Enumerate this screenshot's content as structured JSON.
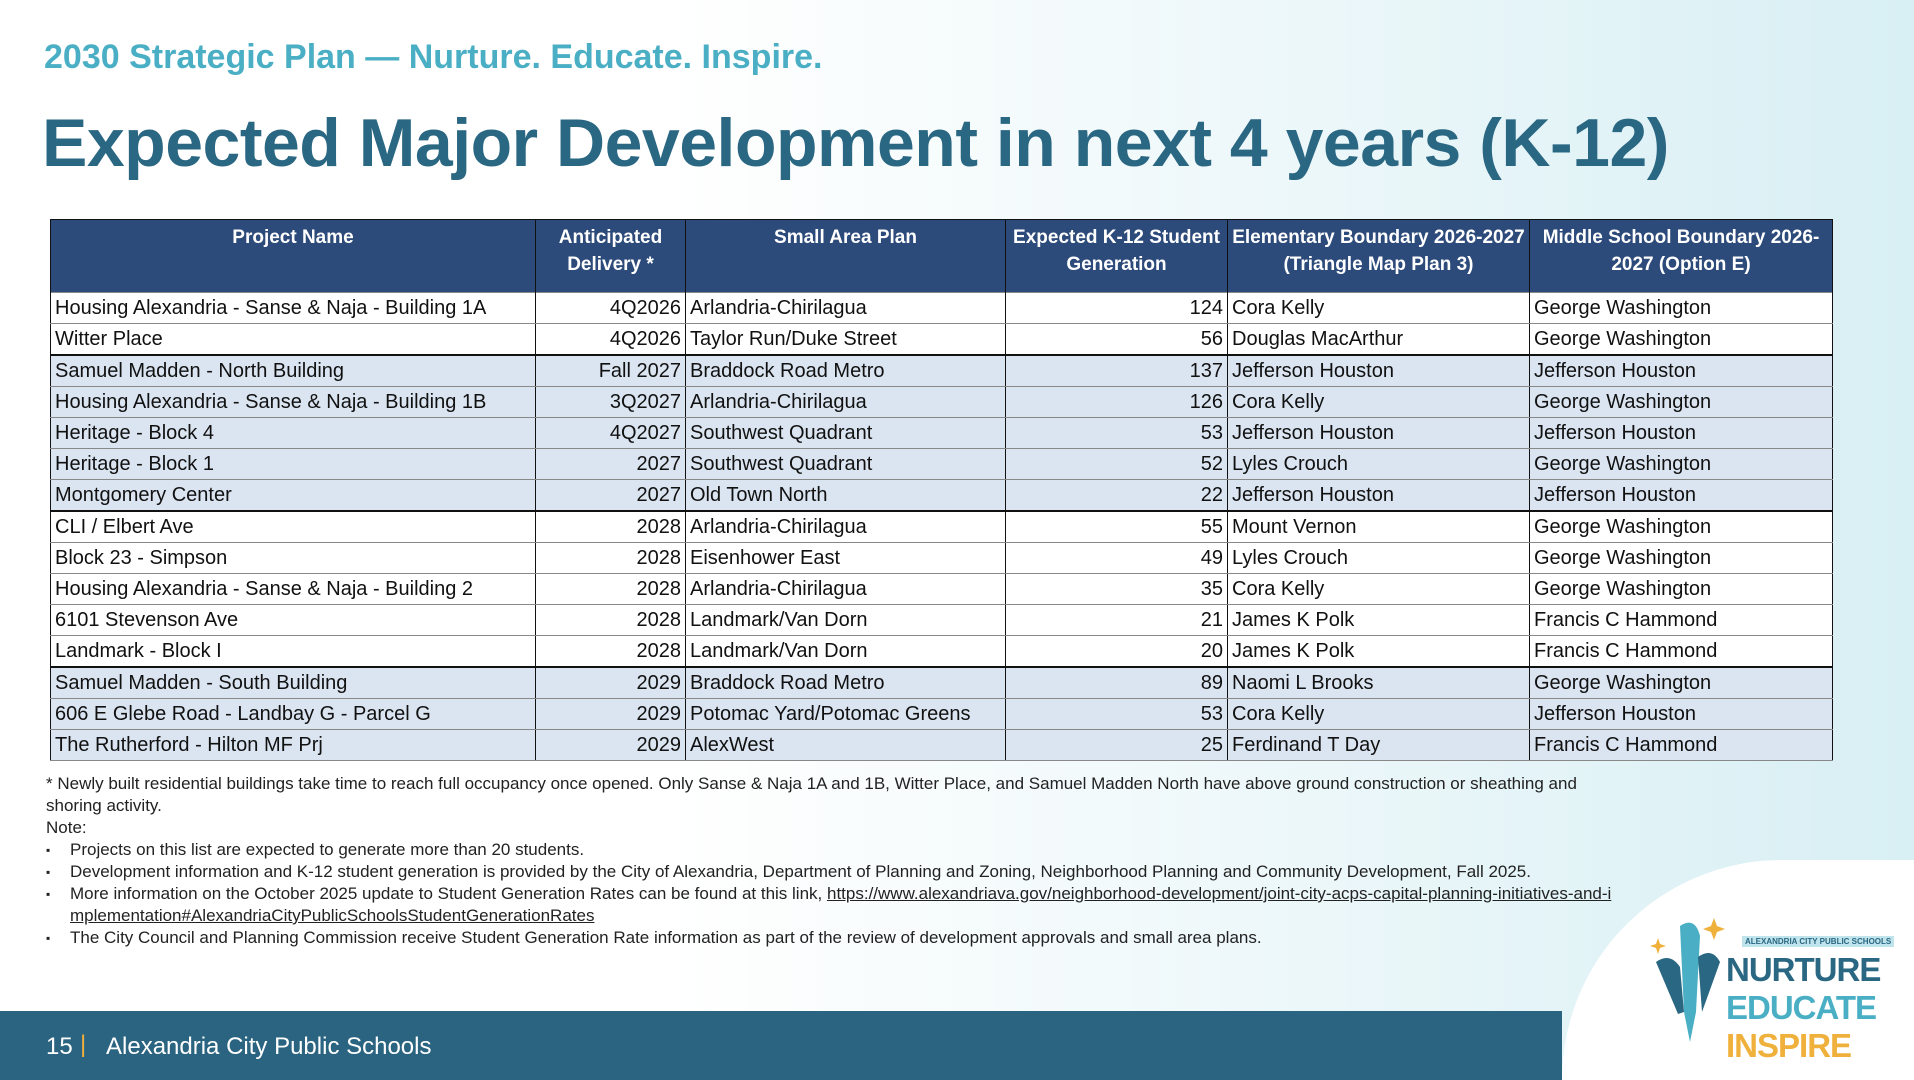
{
  "header": {
    "subtitle": "2030 Strategic Plan — Nurture. Educate. Inspire.",
    "title": "Expected Major Development in next 4 years (K-12)"
  },
  "table": {
    "columns": [
      "Project Name",
      "Anticipated Delivery *",
      "Small Area Plan",
      "Expected K-12 Student Generation",
      "Elementary Boundary 2026-2027 (Triangle Map Plan 3)",
      "Middle School Boundary 2026-2027 (Option E)"
    ],
    "rows": [
      [
        "Housing Alexandria - Sanse & Naja - Building 1A",
        "4Q2026",
        "Arlandria-Chirilagua",
        "124",
        "Cora Kelly",
        "George Washington"
      ],
      [
        "Witter Place",
        "4Q2026",
        "Taylor Run/Duke Street",
        "56",
        "Douglas MacArthur",
        "George Washington"
      ],
      [
        "Samuel Madden - North Building",
        "Fall 2027",
        "Braddock Road Metro",
        "137",
        "Jefferson Houston",
        "Jefferson Houston"
      ],
      [
        "Housing Alexandria - Sanse & Naja - Building 1B",
        "3Q2027",
        "Arlandria-Chirilagua",
        "126",
        "Cora Kelly",
        "George Washington"
      ],
      [
        "Heritage - Block 4",
        "4Q2027",
        "Southwest Quadrant",
        "53",
        "Jefferson Houston",
        "Jefferson Houston"
      ],
      [
        "Heritage - Block 1",
        "2027",
        "Southwest Quadrant",
        "52",
        "Lyles Crouch",
        "George Washington"
      ],
      [
        "Montgomery Center",
        "2027",
        "Old Town North",
        "22",
        "Jefferson Houston",
        "Jefferson Houston"
      ],
      [
        "CLI / Elbert Ave",
        "2028",
        "Arlandria-Chirilagua",
        "55",
        "Mount Vernon",
        "George Washington"
      ],
      [
        "Block 23 - Simpson",
        "2028",
        "Eisenhower East",
        "49",
        "Lyles Crouch",
        "George Washington"
      ],
      [
        "Housing Alexandria - Sanse & Naja - Building 2",
        "2028",
        "Arlandria-Chirilagua",
        "35",
        "Cora Kelly",
        "George Washington"
      ],
      [
        "6101 Stevenson Ave",
        "2028",
        "Landmark/Van Dorn",
        "21",
        "James K Polk",
        "Francis C Hammond"
      ],
      [
        "Landmark  - Block I",
        "2028",
        "Landmark/Van Dorn",
        "20",
        "James K Polk",
        "Francis C Hammond"
      ],
      [
        "Samuel Madden - South Building",
        "2029",
        "Braddock Road Metro",
        "89",
        "Naomi L Brooks",
        "George Washington"
      ],
      [
        "606 E Glebe Road - Landbay G - Parcel G",
        "2029",
        "Potomac Yard/Potomac Greens",
        "53",
        "Cora Kelly",
        "Jefferson Houston"
      ],
      [
        "The Rutherford - Hilton MF Prj",
        "2029",
        "AlexWest",
        "25",
        "Ferdinand T Day",
        "Francis C Hammond"
      ]
    ]
  },
  "notes": {
    "footnote": "* Newly built residential buildings take time to reach full occupancy once opened. Only Sanse & Naja 1A and 1B, Witter Place, and Samuel Madden North have above ground construction or sheathing and shoring activity.",
    "label": "Note:",
    "bullets": [
      "Projects on this list are expected to generate more than 20 students.",
      "Development information and K-12 student generation is provided by the City of Alexandria, Department of Planning and Zoning, Neighborhood Planning and Community Development, Fall 2025.",
      "More information on the October 2025 update to Student Generation Rates can be found at this link, ",
      "The City Council and Planning Commission receive Student Generation Rate information as part of the review of development approvals and small area plans."
    ],
    "link": "https://www.alexandriava.gov/neighborhood-development/joint-city-acps-capital-planning-initiatives-and-implementation#AlexandriaCityPublicSchoolsStudentGenerationRates"
  },
  "footer": {
    "page": "15",
    "separator": "|",
    "org": "Alexandria City Public Schools"
  },
  "logo": {
    "small": "ALEXANDRIA CITY PUBLIC SCHOOLS",
    "words": [
      "NURTURE",
      "EDUCATE",
      "INSPIRE"
    ]
  },
  "colors": {
    "title": "#2a6782",
    "subtitle": "#4aafc4",
    "table_header": "#2c4a7a",
    "row_band": "#dbe5f1",
    "footer": "#2b6480",
    "accent": "#f0b03c"
  }
}
